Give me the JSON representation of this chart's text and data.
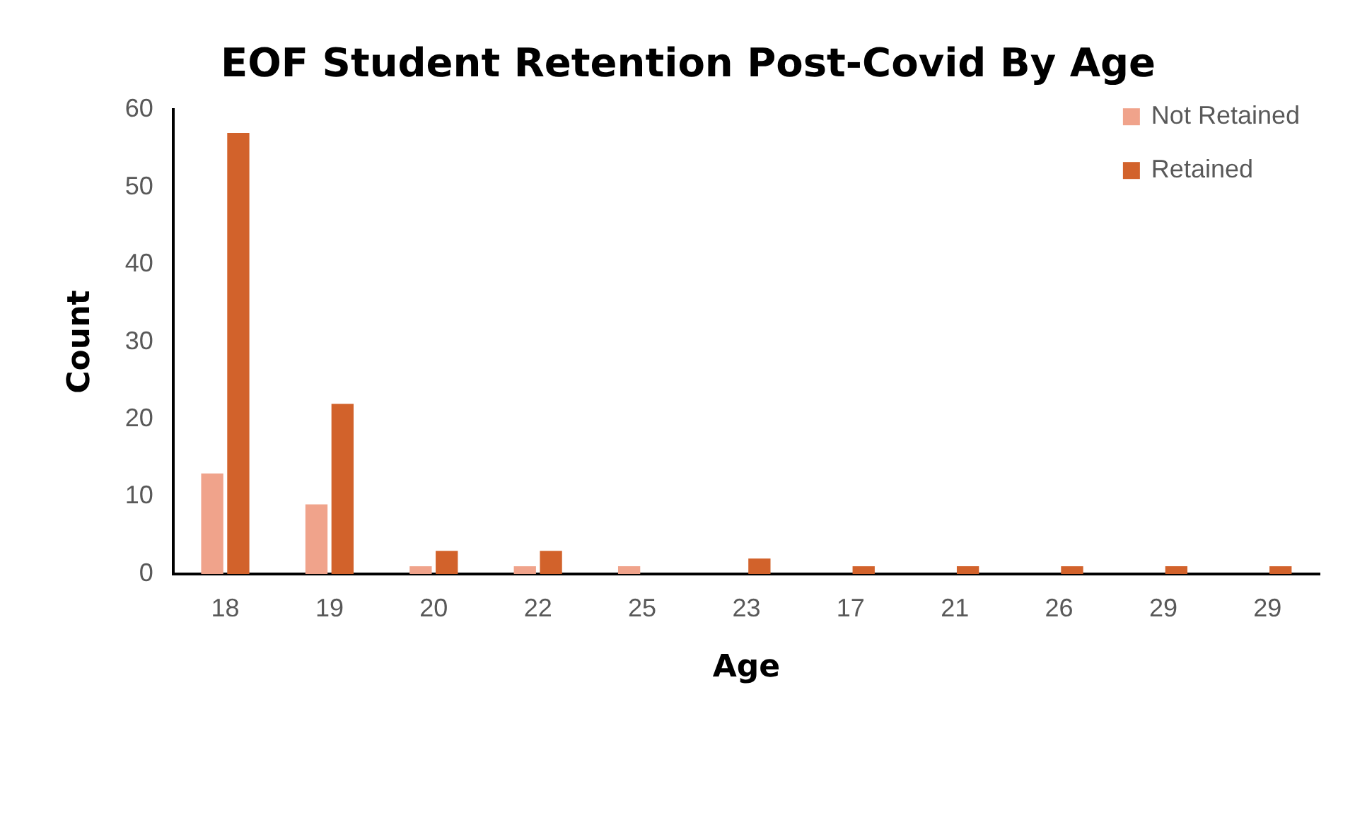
{
  "chart_data": {
    "type": "bar",
    "title": "EOF Student Retention Post-Covid By Age",
    "xlabel": "Age",
    "ylabel": "Count",
    "categories": [
      "18",
      "19",
      "20",
      "22",
      "25",
      "23",
      "17",
      "21",
      "26",
      "29",
      "29"
    ],
    "series": [
      {
        "name": "Not Retained",
        "color": "#f0a38b",
        "values": [
          13,
          9,
          1,
          1,
          1,
          0,
          0,
          0,
          0,
          0,
          0
        ]
      },
      {
        "name": "Retained",
        "color": "#d2622b",
        "values": [
          57,
          22,
          3,
          3,
          0,
          2,
          1,
          1,
          1,
          1,
          1
        ]
      }
    ],
    "ylim": [
      0,
      60
    ],
    "yticks": [
      0,
      10,
      20,
      30,
      40,
      50,
      60
    ],
    "grid": false,
    "legend": "top right"
  }
}
